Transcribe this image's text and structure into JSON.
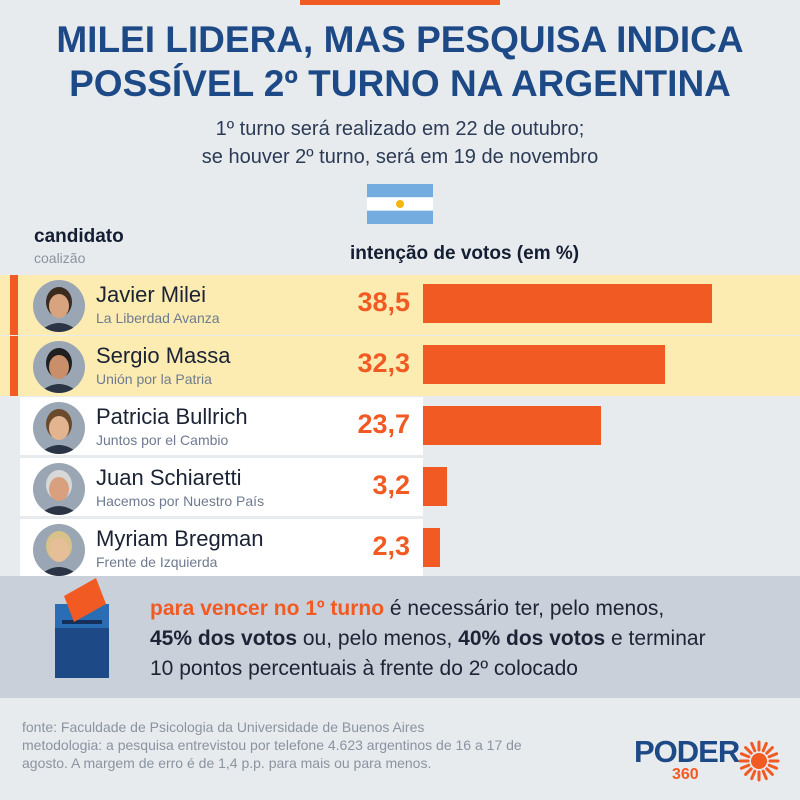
{
  "header": {
    "title_line1": "MILEI LIDERA, MAS PESQUISA INDICA",
    "title_line2": "POSSÍVEL 2º TURNO NA ARGENTINA",
    "subtitle_line1": "1º turno será realizado em 22 de outubro;",
    "subtitle_line2": "se houver 2º turno, será em 19 de novembro",
    "flag_icon": "argentina-flag-icon"
  },
  "columns": {
    "candidate": "candidato",
    "coalition": "coalizão",
    "votes": "intenção de votos (em %)"
  },
  "colors": {
    "accent": "#f15a22",
    "title": "#1d4a86",
    "highlight_band": "#fdecb2",
    "panel": "#c9d0d9"
  },
  "chart_data": {
    "type": "bar",
    "title": "MILEI LIDERA, MAS PESQUISA INDICA POSSÍVEL 2º TURNO NA ARGENTINA",
    "xlabel": "",
    "ylabel": "intenção de votos (em %)",
    "ylim": [
      0,
      40
    ],
    "categories": [
      "Javier Milei",
      "Sergio Massa",
      "Patricia Bullrich",
      "Juan Schiaretti",
      "Myriam Bregman"
    ],
    "coalitions": [
      "La Liberdad Avanza",
      "Unión por la Patria",
      "Juntos por el Cambio",
      "Hacemos por Nuestro País",
      "Frente de Izquierda"
    ],
    "values": [
      38.5,
      32.3,
      23.7,
      3.2,
      2.3
    ],
    "value_labels": [
      "38,5",
      "32,3",
      "23,7",
      "3,2",
      "2,3"
    ],
    "highlighted": [
      true,
      true,
      false,
      false,
      false
    ]
  },
  "info": {
    "icon": "ballot-box-icon",
    "lead": "para vencer no 1º turno",
    "part1": " é necessário ter, pelo menos,",
    "bold1": "45% dos votos",
    "part2": " ou, pelo menos, ",
    "bold2": "40% dos votos",
    "part3": " e terminar",
    "line3": "10 pontos percentuais à frente do 2º colocado"
  },
  "source": {
    "line1": "fonte: Faculdade de Psicologia da Universidade de Buenos Aires",
    "line2": "metodologia: a pesquisa entrevistou por telefone 4.623 argentinos de 16 a 17 de agosto. A margem de erro é de 1,4 p.p. para mais ou para menos."
  },
  "logo": {
    "word": "PODER",
    "number": "360"
  }
}
